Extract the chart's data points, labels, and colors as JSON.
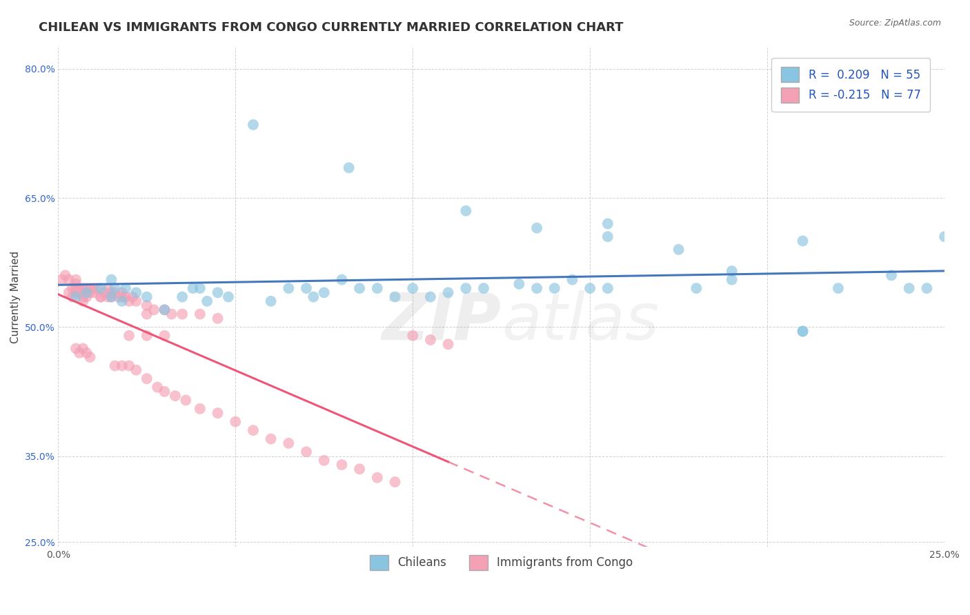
{
  "title": "CHILEAN VS IMMIGRANTS FROM CONGO CURRENTLY MARRIED CORRELATION CHART",
  "source": "Source: ZipAtlas.com",
  "ylabel": "Currently Married",
  "legend_label1": "Chileans",
  "legend_label2": "Immigrants from Congo",
  "R1": 0.209,
  "N1": 55,
  "R2": -0.215,
  "N2": 77,
  "xlim": [
    0.0,
    0.25
  ],
  "ylim": [
    0.245,
    0.825
  ],
  "ytick_values": [
    0.25,
    0.35,
    0.5,
    0.65,
    0.8
  ],
  "xtick_values": [
    0.0,
    0.05,
    0.1,
    0.15,
    0.2,
    0.25
  ],
  "color_blue": "#89c4e0",
  "color_pink": "#f4a0b5",
  "line_blue": "#4477bb",
  "line_pink": "#ee5577",
  "background": "#ffffff",
  "title_fontsize": 13,
  "axis_label_fontsize": 11,
  "tick_fontsize": 10,
  "legend_fontsize": 12,
  "source_fontsize": 9,
  "blue_x": [
    0.055,
    0.082,
    0.115,
    0.135,
    0.155,
    0.175,
    0.19,
    0.21,
    0.005,
    0.008,
    0.012,
    0.015,
    0.016,
    0.018,
    0.022,
    0.025,
    0.03,
    0.035,
    0.038,
    0.04,
    0.045,
    0.048,
    0.06,
    0.065,
    0.07,
    0.075,
    0.08,
    0.085,
    0.09,
    0.095,
    0.1,
    0.105,
    0.11,
    0.115,
    0.12,
    0.13,
    0.135,
    0.14,
    0.145,
    0.15,
    0.18,
    0.19,
    0.22,
    0.235,
    0.245,
    0.21,
    0.015,
    0.019,
    0.042,
    0.072,
    0.155,
    0.155,
    0.24,
    0.25,
    0.21
  ],
  "blue_y": [
    0.735,
    0.685,
    0.635,
    0.615,
    0.62,
    0.59,
    0.565,
    0.6,
    0.535,
    0.54,
    0.545,
    0.555,
    0.545,
    0.53,
    0.54,
    0.535,
    0.52,
    0.535,
    0.545,
    0.545,
    0.54,
    0.535,
    0.53,
    0.545,
    0.545,
    0.54,
    0.555,
    0.545,
    0.545,
    0.535,
    0.545,
    0.535,
    0.54,
    0.545,
    0.545,
    0.55,
    0.545,
    0.545,
    0.555,
    0.545,
    0.545,
    0.555,
    0.545,
    0.56,
    0.545,
    0.495,
    0.535,
    0.545,
    0.53,
    0.535,
    0.545,
    0.605,
    0.545,
    0.605,
    0.495
  ],
  "pink_x": [
    0.001,
    0.002,
    0.003,
    0.003,
    0.004,
    0.004,
    0.005,
    0.005,
    0.005,
    0.005,
    0.006,
    0.006,
    0.007,
    0.007,
    0.007,
    0.008,
    0.008,
    0.009,
    0.009,
    0.01,
    0.01,
    0.011,
    0.012,
    0.012,
    0.013,
    0.014,
    0.014,
    0.015,
    0.015,
    0.016,
    0.017,
    0.018,
    0.018,
    0.019,
    0.02,
    0.021,
    0.022,
    0.025,
    0.025,
    0.027,
    0.03,
    0.032,
    0.035,
    0.04,
    0.045,
    0.005,
    0.006,
    0.007,
    0.008,
    0.009,
    0.016,
    0.018,
    0.02,
    0.022,
    0.025,
    0.028,
    0.03,
    0.033,
    0.036,
    0.04,
    0.045,
    0.05,
    0.055,
    0.06,
    0.065,
    0.07,
    0.075,
    0.08,
    0.085,
    0.09,
    0.095,
    0.1,
    0.105,
    0.11,
    0.03,
    0.025,
    0.02
  ],
  "pink_y": [
    0.555,
    0.56,
    0.555,
    0.54,
    0.545,
    0.535,
    0.55,
    0.54,
    0.545,
    0.555,
    0.545,
    0.54,
    0.545,
    0.53,
    0.535,
    0.545,
    0.535,
    0.54,
    0.545,
    0.54,
    0.545,
    0.545,
    0.535,
    0.535,
    0.54,
    0.545,
    0.535,
    0.54,
    0.535,
    0.54,
    0.535,
    0.54,
    0.535,
    0.535,
    0.53,
    0.535,
    0.53,
    0.525,
    0.515,
    0.52,
    0.52,
    0.515,
    0.515,
    0.515,
    0.51,
    0.475,
    0.47,
    0.475,
    0.47,
    0.465,
    0.455,
    0.455,
    0.455,
    0.45,
    0.44,
    0.43,
    0.425,
    0.42,
    0.415,
    0.405,
    0.4,
    0.39,
    0.38,
    0.37,
    0.365,
    0.355,
    0.345,
    0.34,
    0.335,
    0.325,
    0.32,
    0.49,
    0.485,
    0.48,
    0.49,
    0.49,
    0.49
  ]
}
